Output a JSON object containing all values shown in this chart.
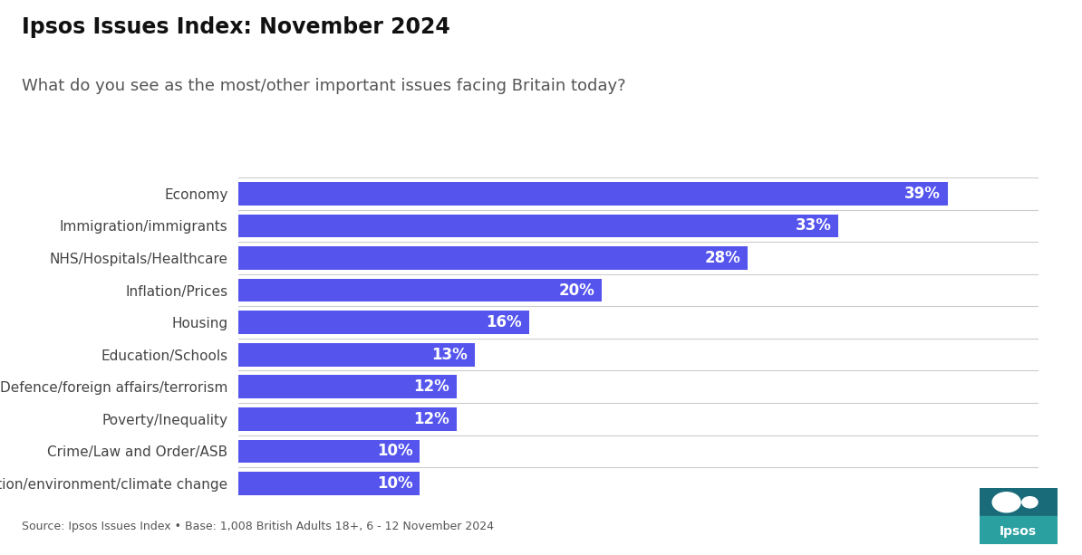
{
  "title": "Ipsos Issues Index: November 2024",
  "subtitle": "What do you see as the most/other important issues facing Britain today?",
  "categories": [
    "Pollution/environment/climate change",
    "Crime/Law and Order/ASB",
    "Poverty/Inequality",
    "Defence/foreign affairs/terrorism",
    "Education/Schools",
    "Housing",
    "Inflation/Prices",
    "NHS/Hospitals/Healthcare",
    "Immigration/immigrants",
    "Economy"
  ],
  "values": [
    10,
    10,
    12,
    12,
    13,
    16,
    20,
    28,
    33,
    39
  ],
  "bar_color": "#5555ee",
  "label_color": "#ffffff",
  "title_fontsize": 17,
  "subtitle_fontsize": 13,
  "source_text": "Source: Ipsos Issues Index • Base: 1,008 British Adults 18+, 6 - 12 November 2024",
  "xlim": [
    0,
    44
  ],
  "background_color": "#ffffff",
  "bar_height": 0.72,
  "value_label_fontsize": 12,
  "category_fontsize": 11,
  "grid_color": "#cccccc",
  "title_color": "#111111",
  "subtitle_color": "#555555",
  "source_color": "#555555",
  "source_fontsize": 9,
  "logo_bg_top": "#1a6b7a",
  "logo_bg_bottom": "#2aa0a0",
  "logo_text": "Ipsos",
  "logo_text_color": "#ffffff",
  "logo_text_fontsize": 10
}
